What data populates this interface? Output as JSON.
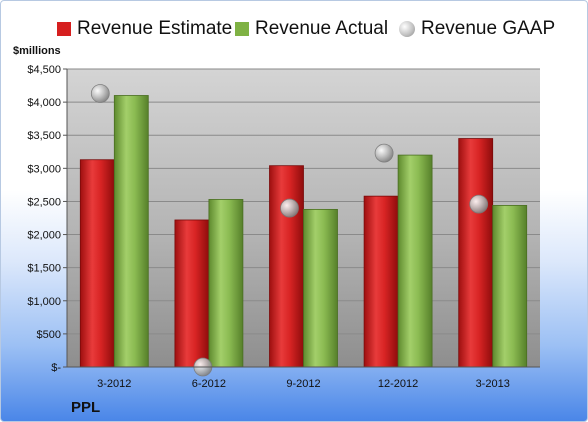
{
  "company": "PPL",
  "unit_label": "$millions",
  "legend": [
    {
      "label": "Revenue Estimate",
      "color": "#e32222",
      "shape": "square"
    },
    {
      "label": "Revenue Actual",
      "color": "#8bbf4e",
      "shape": "square"
    },
    {
      "label": "Revenue GAAP",
      "color": "#bdbdbd",
      "shape": "circle"
    }
  ],
  "chart_data": {
    "type": "bar",
    "categories": [
      "3-2012",
      "6-2012",
      "9-2012",
      "12-2012",
      "3-2013"
    ],
    "series": [
      {
        "name": "Revenue Estimate",
        "type": "bar",
        "color": "#e32222",
        "values": [
          3130,
          2220,
          3040,
          2580,
          3450
        ]
      },
      {
        "name": "Revenue Actual",
        "type": "bar",
        "color": "#8bbf4e",
        "values": [
          4100,
          2530,
          2380,
          3200,
          2440
        ]
      },
      {
        "name": "Revenue GAAP",
        "type": "scatter",
        "color": "#bdbdbd",
        "values": [
          4130,
          0,
          2400,
          3230,
          2460
        ]
      }
    ],
    "ylabel": "$millions",
    "ylim": [
      0,
      4500
    ],
    "yticks": [
      0,
      500,
      1000,
      1500,
      2000,
      2500,
      3000,
      3500,
      4000,
      4500
    ],
    "ytick_labels": [
      "$-",
      "$500",
      "$1,000",
      "$1,500",
      "$2,000",
      "$2,500",
      "$3,000",
      "$3,500",
      "$4,000",
      "$4,500"
    ],
    "grid": true,
    "legend_position": "top"
  }
}
